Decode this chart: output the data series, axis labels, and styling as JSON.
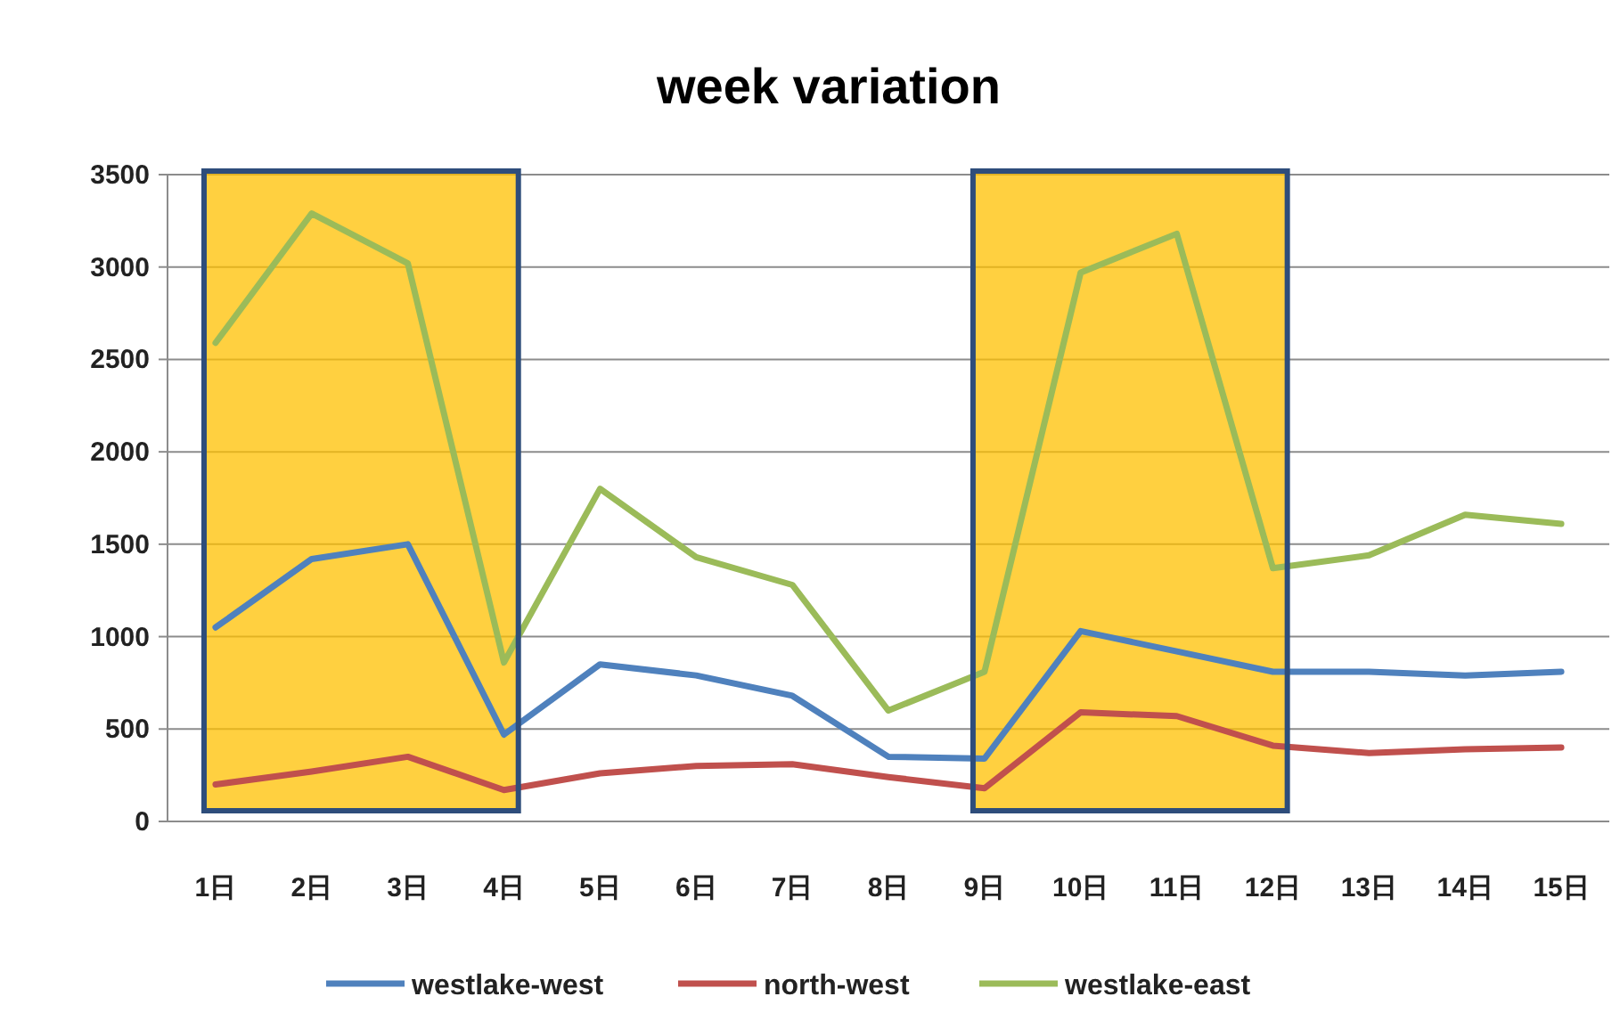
{
  "chart_data": {
    "type": "line",
    "title": "week variation",
    "categories": [
      "1日",
      "2日",
      "3日",
      "4日",
      "5日",
      "6日",
      "7日",
      "8日",
      "9日",
      "10日",
      "11日",
      "12日",
      "13日",
      "14日",
      "15日"
    ],
    "series": [
      {
        "name": "westlake-west",
        "color": "#4f81bd",
        "values": [
          1050,
          1420,
          1500,
          470,
          850,
          790,
          680,
          350,
          340,
          1030,
          920,
          810,
          810,
          790,
          810
        ]
      },
      {
        "name": "north-west",
        "color": "#c0504d",
        "values": [
          200,
          270,
          350,
          170,
          260,
          300,
          310,
          240,
          180,
          590,
          570,
          410,
          370,
          390,
          400
        ]
      },
      {
        "name": "westlake-east",
        "color": "#9bbb59",
        "values": [
          2590,
          3290,
          3020,
          860,
          1800,
          1430,
          1280,
          600,
          810,
          2970,
          3180,
          1370,
          1440,
          1660,
          1610
        ]
      }
    ],
    "ylim": [
      0,
      3500
    ],
    "yticks": [
      0,
      500,
      1000,
      1500,
      2000,
      2500,
      3000,
      3500
    ],
    "grid": "y",
    "legend": "bottom",
    "marker": "none",
    "line_style": "solid",
    "bands": [
      {
        "axis": "x",
        "from": "1日",
        "to": "4日",
        "color": "#ffc000"
      },
      {
        "axis": "x",
        "from": "9日",
        "to": "12日",
        "color": "#ffc000"
      }
    ]
  }
}
